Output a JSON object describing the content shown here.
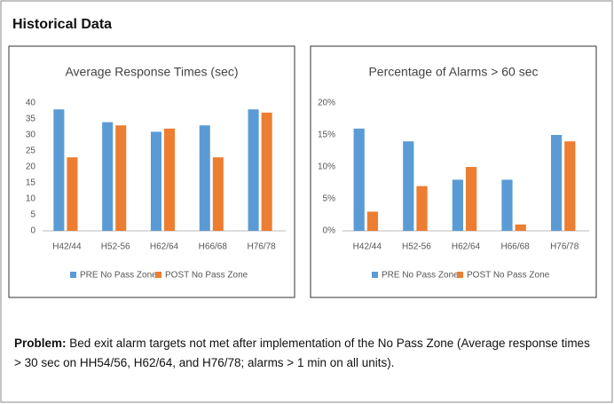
{
  "heading": "Historical Data",
  "problem": {
    "label": "Problem:",
    "text": "Bed exit alarm targets not met after implementation of the No Pass Zone (Average response times > 30 sec on HH54/56, H62/64, and H76/78; alarms > 1 min on all units)."
  },
  "chart_data": [
    {
      "type": "bar",
      "title": "Average Response Times (sec)",
      "categories": [
        "H42/44",
        "H52-56",
        "H62/64",
        "H66/68",
        "H76/78"
      ],
      "series": [
        {
          "name": "PRE No Pass Zone",
          "color": "#5b9bd5",
          "values": [
            38,
            34,
            31,
            33,
            38
          ]
        },
        {
          "name": "POST No Pass Zone",
          "color": "#ed7d31",
          "values": [
            23,
            33,
            32,
            23,
            37
          ]
        }
      ],
      "ylim": [
        0,
        40
      ],
      "yticks": [
        0,
        5,
        10,
        15,
        20,
        25,
        30,
        35,
        40
      ],
      "grid": false,
      "legend": "bottom"
    },
    {
      "type": "bar",
      "title": "Percentage of Alarms > 60 sec",
      "categories": [
        "H42/44",
        "H52-56",
        "H62/64",
        "H66/68",
        "H76/78"
      ],
      "series": [
        {
          "name": "PRE No Pass Zone",
          "color": "#5b9bd5",
          "values": [
            16,
            14,
            8,
            8,
            15
          ]
        },
        {
          "name": "POST No Pass Zone",
          "color": "#ed7d31",
          "values": [
            3,
            7,
            10,
            1,
            14
          ]
        }
      ],
      "ylim": [
        0,
        20
      ],
      "yticks": [
        {
          "value": 0,
          "label": "0%"
        },
        {
          "value": 5,
          "label": "5%"
        },
        {
          "value": 10,
          "label": "10%"
        },
        {
          "value": 15,
          "label": "15%"
        },
        {
          "value": 20,
          "label": "20%"
        }
      ],
      "grid": false,
      "legend": "bottom"
    }
  ]
}
